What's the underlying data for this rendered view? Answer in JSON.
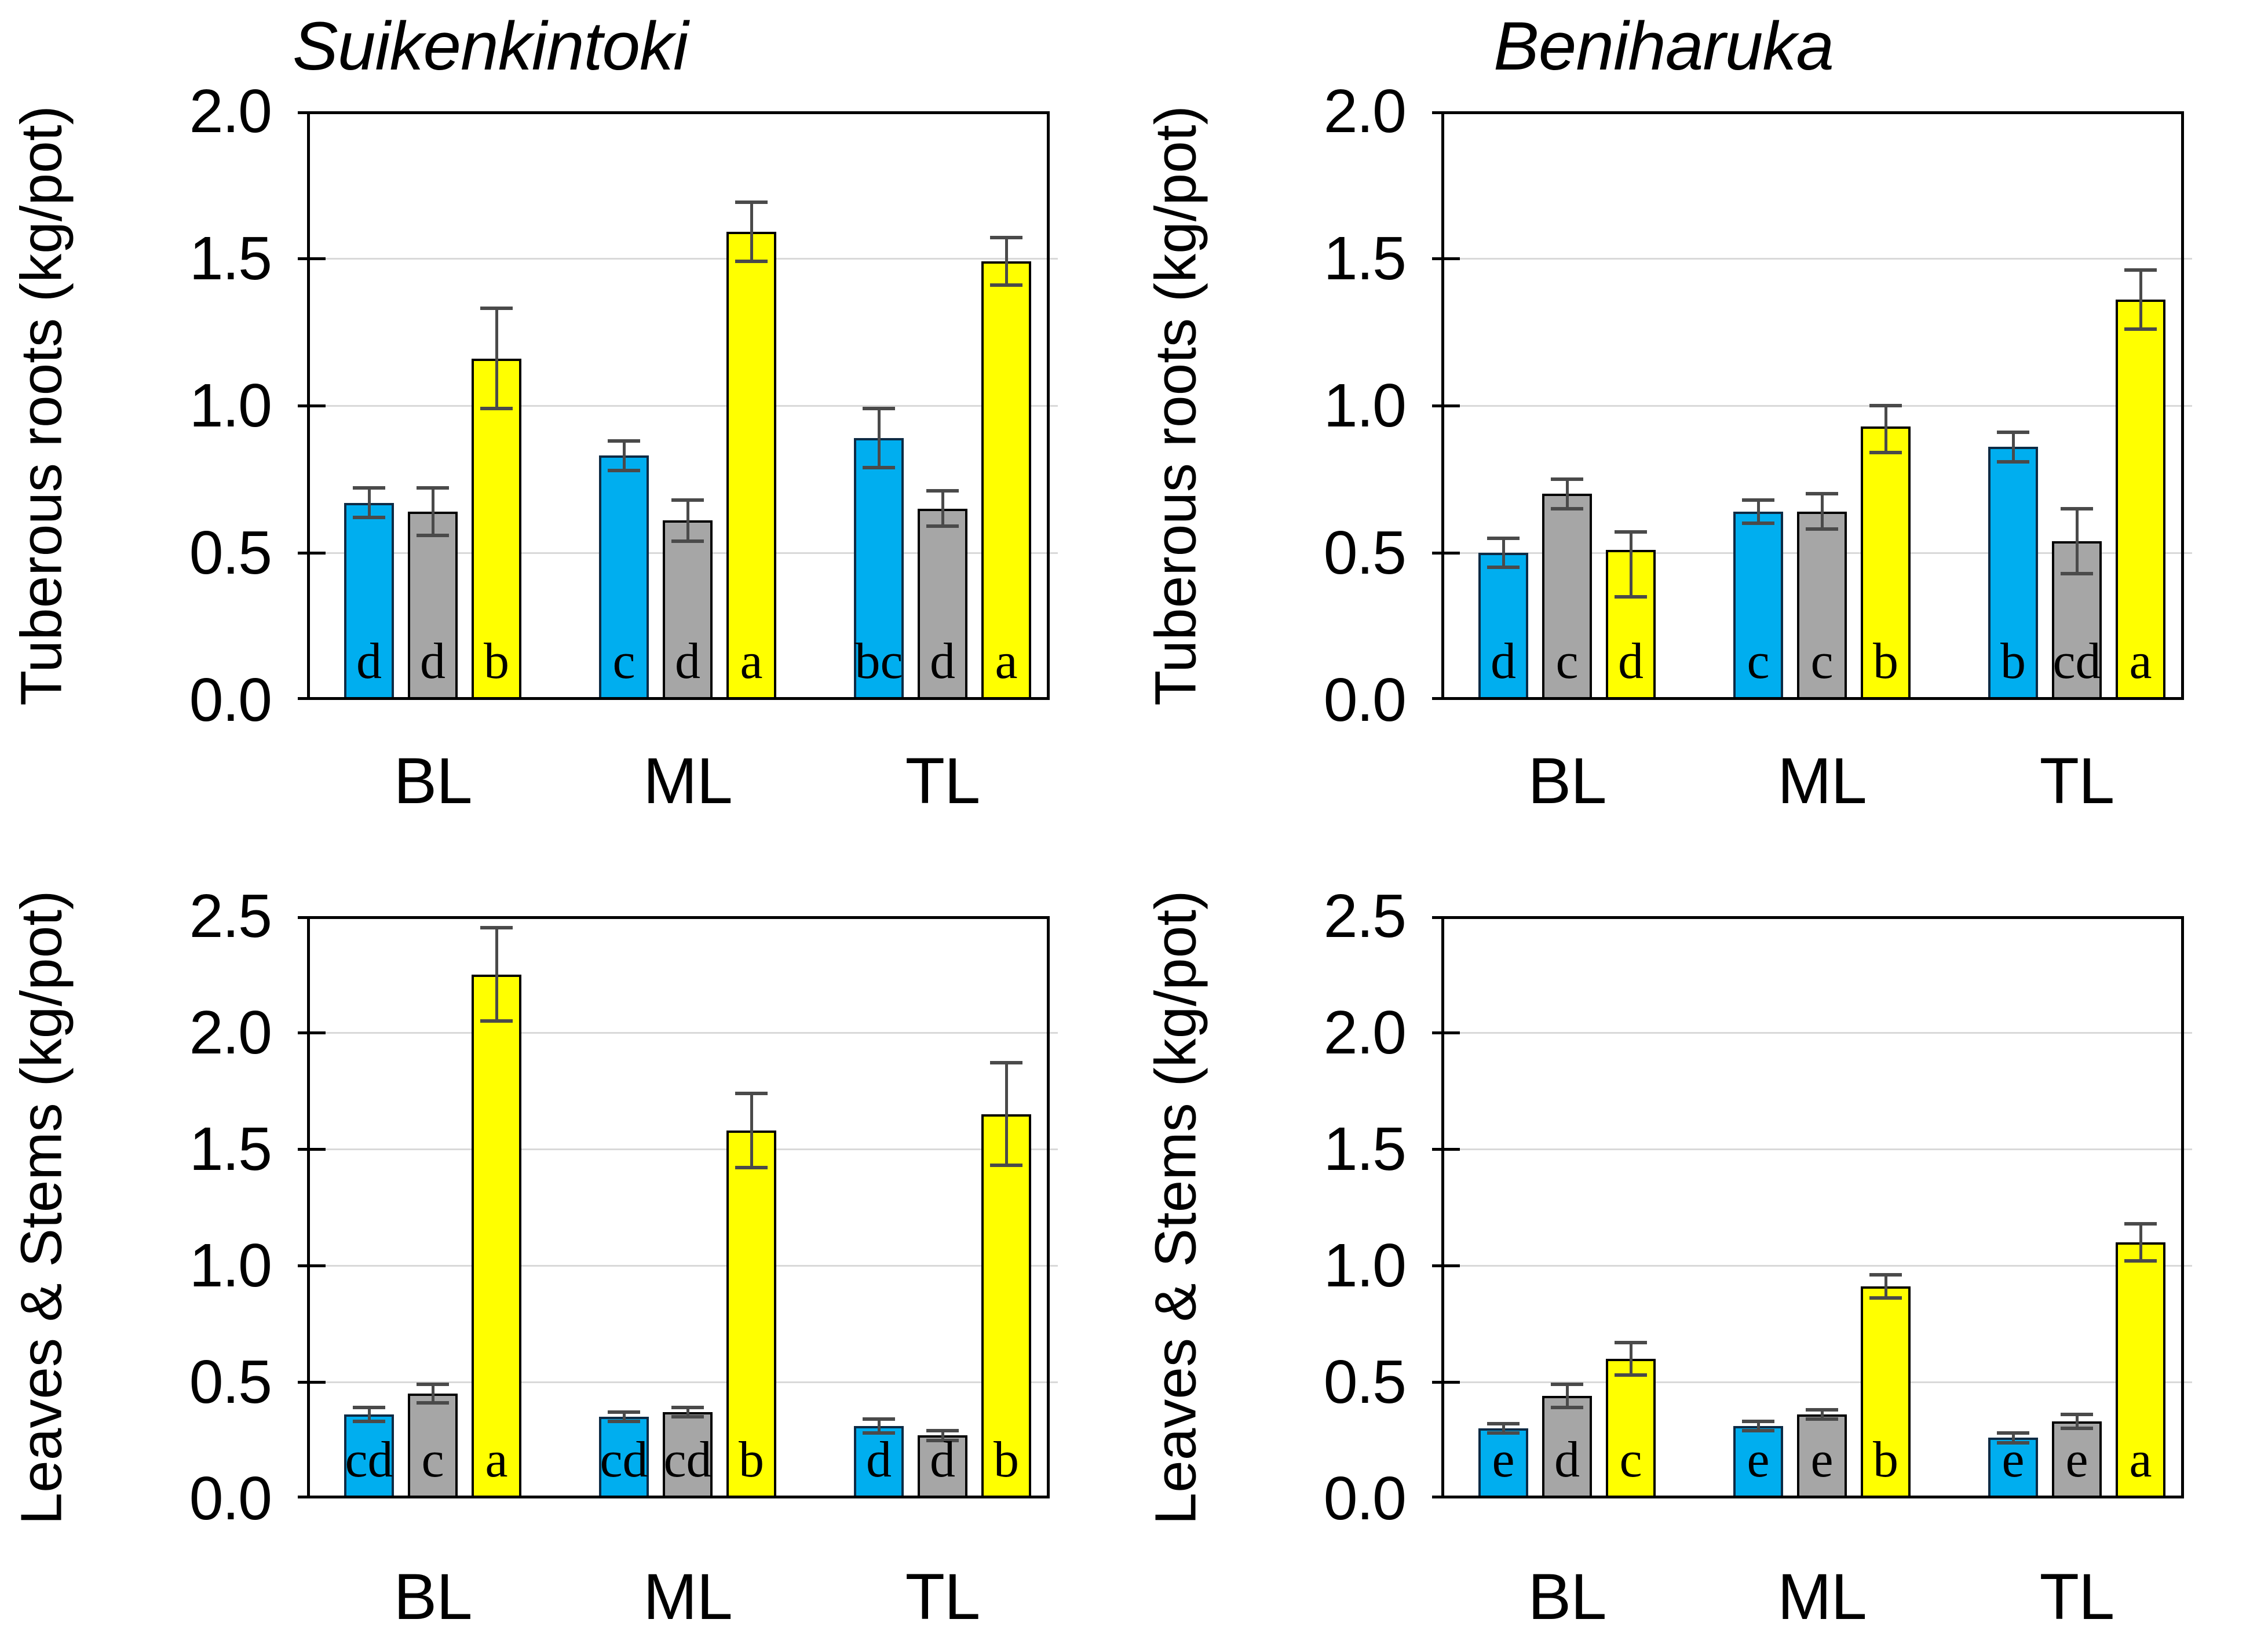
{
  "colors": {
    "bar_blue": "#00AEEF",
    "bar_blue_border": "#0D2B45",
    "bar_gray": "#A6A6A6",
    "bar_yellow": "#FFFF00",
    "bar_border": "#000000",
    "error_bar": "#4A4A4A",
    "gridline": "#D9D9D9",
    "axis": "#000000",
    "text": "#000000",
    "background": "#FFFFFF"
  },
  "chart_data": [
    {
      "type": "bar",
      "title": "Suikenkintoki",
      "ylabel": "Tuberous roots (kg/pot)",
      "xlabel": "",
      "categories": [
        "BL",
        "ML",
        "TL"
      ],
      "ylim": [
        0,
        2.0
      ],
      "ytick_step": 0.5,
      "yticks": [
        "0.0",
        "0.5",
        "1.0",
        "1.5",
        "2.0"
      ],
      "grid": "horizontal",
      "legend": "none",
      "series": [
        {
          "name": "blue",
          "color_key": "bar_blue",
          "values": [
            0.67,
            0.83,
            0.89
          ],
          "errors_up": [
            0.05,
            0.05,
            0.1
          ],
          "errors_down": [
            0.05,
            0.05,
            0.1
          ],
          "letters": [
            "d",
            "c",
            "bc"
          ]
        },
        {
          "name": "gray",
          "color_key": "bar_gray",
          "values": [
            0.64,
            0.61,
            0.65
          ],
          "errors_up": [
            0.08,
            0.07,
            0.06
          ],
          "errors_down": [
            0.08,
            0.07,
            0.06
          ],
          "letters": [
            "d",
            "d",
            "d"
          ]
        },
        {
          "name": "yellow",
          "color_key": "bar_yellow",
          "values": [
            1.16,
            1.59,
            1.49
          ],
          "errors_up": [
            0.17,
            0.1,
            0.08
          ],
          "errors_down": [
            0.17,
            0.1,
            0.08
          ],
          "letters": [
            "b",
            "a",
            "a"
          ]
        }
      ]
    },
    {
      "type": "bar",
      "title": "Beniharuka",
      "ylabel": "Tuberous roots (kg/pot)",
      "xlabel": "",
      "categories": [
        "BL",
        "ML",
        "TL"
      ],
      "ylim": [
        0,
        2.0
      ],
      "ytick_step": 0.5,
      "yticks": [
        "0.0",
        "0.5",
        "1.0",
        "1.5",
        "2.0"
      ],
      "grid": "horizontal",
      "legend": "none",
      "series": [
        {
          "name": "blue",
          "color_key": "bar_blue",
          "values": [
            0.5,
            0.64,
            0.86
          ],
          "errors_up": [
            0.05,
            0.04,
            0.05
          ],
          "errors_down": [
            0.05,
            0.04,
            0.05
          ],
          "letters": [
            "d",
            "c",
            "b"
          ]
        },
        {
          "name": "gray",
          "color_key": "bar_gray",
          "values": [
            0.7,
            0.64,
            0.54
          ],
          "errors_up": [
            0.05,
            0.06,
            0.11
          ],
          "errors_down": [
            0.05,
            0.06,
            0.11
          ],
          "letters": [
            "c",
            "c",
            "cd"
          ]
        },
        {
          "name": "yellow",
          "color_key": "bar_yellow",
          "values": [
            0.51,
            0.93,
            1.36
          ],
          "errors_up": [
            0.06,
            0.07,
            0.1
          ],
          "errors_down": [
            0.16,
            0.09,
            0.1
          ],
          "letters": [
            "d",
            "b",
            "a"
          ]
        }
      ]
    },
    {
      "type": "bar",
      "title": "",
      "ylabel": "Leaves & Stems (kg/pot)",
      "xlabel": "",
      "categories": [
        "BL",
        "ML",
        "TL"
      ],
      "ylim": [
        0,
        2.5
      ],
      "ytick_step": 0.5,
      "yticks": [
        "0.0",
        "0.5",
        "1.0",
        "1.5",
        "2.0",
        "2.5"
      ],
      "grid": "horizontal",
      "legend": "none",
      "series": [
        {
          "name": "blue",
          "color_key": "bar_blue",
          "values": [
            0.36,
            0.35,
            0.31
          ],
          "errors_up": [
            0.03,
            0.02,
            0.03
          ],
          "errors_down": [
            0.03,
            0.02,
            0.03
          ],
          "letters": [
            "cd",
            "cd",
            "d"
          ]
        },
        {
          "name": "gray",
          "color_key": "bar_gray",
          "values": [
            0.45,
            0.37,
            0.27
          ],
          "errors_up": [
            0.04,
            0.02,
            0.02
          ],
          "errors_down": [
            0.04,
            0.02,
            0.02
          ],
          "letters": [
            "c",
            "cd",
            "d"
          ]
        },
        {
          "name": "yellow",
          "color_key": "bar_yellow",
          "values": [
            2.25,
            1.58,
            1.65
          ],
          "errors_up": [
            0.2,
            0.16,
            0.22
          ],
          "errors_down": [
            0.2,
            0.16,
            0.22
          ],
          "letters": [
            "a",
            "b",
            "b"
          ]
        }
      ]
    },
    {
      "type": "bar",
      "title": "",
      "ylabel": "Leaves & Stems (kg/pot)",
      "xlabel": "",
      "categories": [
        "BL",
        "ML",
        "TL"
      ],
      "ylim": [
        0,
        2.5
      ],
      "ytick_step": 0.5,
      "yticks": [
        "0.0",
        "0.5",
        "1.0",
        "1.5",
        "2.0",
        "2.5"
      ],
      "grid": "horizontal",
      "legend": "none",
      "series": [
        {
          "name": "blue",
          "color_key": "bar_blue",
          "values": [
            0.3,
            0.31,
            0.26
          ],
          "errors_up": [
            0.02,
            0.02,
            0.02
          ],
          "errors_down": [
            0.02,
            0.02,
            0.02
          ],
          "letters": [
            "e",
            "e",
            "e"
          ]
        },
        {
          "name": "gray",
          "color_key": "bar_gray",
          "values": [
            0.44,
            0.36,
            0.33
          ],
          "errors_up": [
            0.05,
            0.02,
            0.03
          ],
          "errors_down": [
            0.05,
            0.02,
            0.03
          ],
          "letters": [
            "d",
            "e",
            "e"
          ]
        },
        {
          "name": "yellow",
          "color_key": "bar_yellow",
          "values": [
            0.6,
            0.91,
            1.1
          ],
          "errors_up": [
            0.07,
            0.05,
            0.08
          ],
          "errors_down": [
            0.07,
            0.05,
            0.08
          ],
          "letters": [
            "c",
            "b",
            "a"
          ]
        }
      ]
    }
  ]
}
